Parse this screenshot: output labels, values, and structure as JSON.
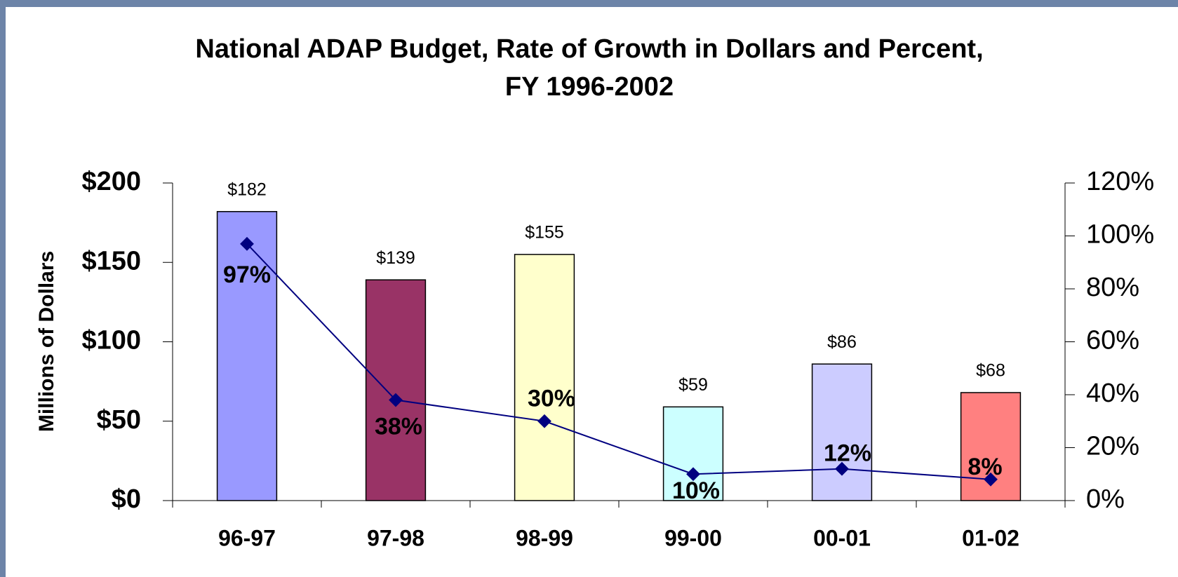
{
  "chart_data": {
    "type": "bar",
    "title": "National ADAP Budget, Rate of Growth in Dollars and Percent,",
    "subtitle": "FY 1996-2002",
    "y_label": "Millions of Dollars",
    "categories": [
      "96-97",
      "97-98",
      "98-99",
      "99-00",
      "00-01",
      "01-02"
    ],
    "series": [
      {
        "type": "bar",
        "values": [
          182,
          139,
          155,
          59,
          86,
          68
        ],
        "value_labels": [
          "$182",
          "$139",
          "$155",
          "$59",
          "$86",
          "$68"
        ],
        "colors": [
          "#9999ff",
          "#993366",
          "#ffffcc",
          "#ccffff",
          "#ccccff",
          "#ff8080"
        ]
      },
      {
        "type": "line",
        "axis": "y2",
        "color": "#000080",
        "values": [
          97,
          38,
          30,
          10,
          12,
          8
        ],
        "value_labels": [
          "97%",
          "38%",
          "30%",
          "10%",
          "12%",
          "8%"
        ]
      }
    ],
    "ylim": [
      0,
      200
    ],
    "yticks": [
      {
        "value": 0,
        "label": "$0"
      },
      {
        "value": 50,
        "label": "$50"
      },
      {
        "value": 100,
        "label": "$100"
      },
      {
        "value": 150,
        "label": "$150"
      },
      {
        "value": 200,
        "label": "$200"
      }
    ],
    "y2lim": [
      0,
      120
    ],
    "y2ticks": [
      {
        "value": 0,
        "label": "0%"
      },
      {
        "value": 20,
        "label": "20%"
      },
      {
        "value": 40,
        "label": "40%"
      },
      {
        "value": 60,
        "label": "60%"
      },
      {
        "value": 80,
        "label": "80%"
      },
      {
        "value": 100,
        "label": "100%"
      },
      {
        "value": 120,
        "label": "120%"
      }
    ]
  }
}
